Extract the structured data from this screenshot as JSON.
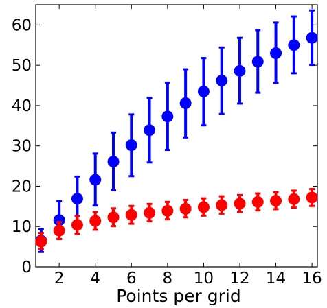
{
  "chart_data": {
    "type": "scatter",
    "title": "",
    "xlabel": "Points per grid",
    "ylabel": "",
    "xlim": [
      0.7,
      16.3
    ],
    "ylim": [
      0,
      65
    ],
    "x_ticks": [
      2,
      4,
      6,
      8,
      10,
      12,
      14,
      16
    ],
    "y_ticks": [
      0,
      10,
      20,
      30,
      40,
      50,
      60
    ],
    "grid": false,
    "legend": "none",
    "x": [
      1,
      2,
      3,
      4,
      5,
      6,
      7,
      8,
      9,
      10,
      11,
      12,
      13,
      14,
      15,
      16
    ],
    "series": [
      {
        "color": "#0000ff",
        "errorbars": true,
        "values": [
          6.5,
          11.6,
          16.9,
          21.6,
          26.1,
          30.2,
          33.9,
          37.3,
          40.6,
          43.5,
          46.2,
          48.6,
          50.9,
          53.0,
          55.0,
          56.8
        ],
        "lower": [
          3.7,
          6.9,
          11.5,
          15.2,
          19.0,
          22.5,
          25.9,
          29.0,
          32.1,
          35.1,
          37.9,
          40.5,
          43.2,
          45.6,
          48.0,
          50.1
        ],
        "upper": [
          9.3,
          16.3,
          22.4,
          28.1,
          33.3,
          37.8,
          41.9,
          45.7,
          49.0,
          51.8,
          54.4,
          56.8,
          58.7,
          60.6,
          62.1,
          63.6
        ]
      },
      {
        "color": "#ff0000",
        "errorbars": true,
        "values": [
          6.3,
          9.0,
          10.4,
          11.4,
          12.3,
          12.9,
          13.4,
          13.9,
          14.4,
          14.8,
          15.3,
          15.7,
          16.1,
          16.4,
          16.8,
          17.2
        ],
        "lower": [
          4.4,
          6.9,
          8.2,
          9.2,
          10.1,
          10.7,
          11.3,
          11.8,
          12.3,
          12.7,
          13.2,
          13.6,
          14.0,
          14.3,
          14.7,
          15.1
        ],
        "upper": [
          8.4,
          11.1,
          12.6,
          13.6,
          14.5,
          15.1,
          15.6,
          16.1,
          16.6,
          17.0,
          17.5,
          17.8,
          18.2,
          18.5,
          18.9,
          19.3
        ]
      }
    ]
  }
}
